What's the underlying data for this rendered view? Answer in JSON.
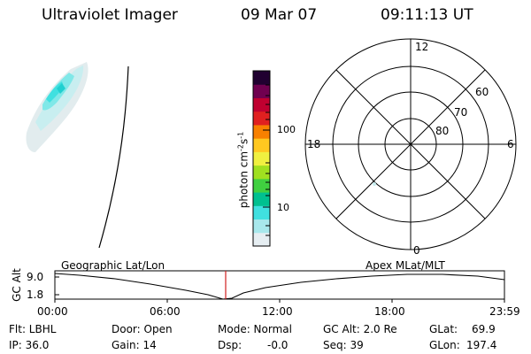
{
  "header": {
    "instrument": "Ultraviolet Imager",
    "date": "09 Mar 07",
    "time": "09:11:13 UT"
  },
  "colorbar": {
    "unit_label": "photon cm-2s-1",
    "unit_parts": [
      "photon cm",
      "-2",
      "s",
      "-1"
    ],
    "tick_labels": [
      "100",
      "10"
    ],
    "colors": [
      "#e6eef2",
      "#a8e8ec",
      "#40e0e0",
      "#00c090",
      "#40d040",
      "#a0e020",
      "#f0f040",
      "#ffc820",
      "#f88000",
      "#e02020",
      "#c00030",
      "#700050",
      "#200030"
    ]
  },
  "polar_plot": {
    "mlt_labels": {
      "top": "12",
      "left": "18",
      "right": "6",
      "bottom": "0"
    },
    "lat_labels": [
      "60",
      "70",
      "80"
    ]
  },
  "timeline": {
    "y_axis_label": "GC Alt",
    "y_ticks": [
      "9.0",
      "1.8"
    ],
    "left_title": "Geographic Lat/Lon",
    "right_title": "Apex MLat/MLT",
    "x_ticks": [
      "00:00",
      "06:00",
      "12:00",
      "18:00",
      "23:59"
    ],
    "marker_color": "#d02020"
  },
  "info": {
    "flt": "Flt: LBHL",
    "ip": "IP: 36.0",
    "door": "Door: Open",
    "gain": "Gain: 14",
    "mode": "Mode: Normal",
    "dsp": "Dsp:",
    "dsp_value": "-0.0",
    "gc_alt": "GC Alt: 2.0 Re",
    "seq": "Seq: 39",
    "glat_label": "GLat:",
    "glat_value": "69.9",
    "glon_label": "GLon:",
    "glon_value": "197.4"
  }
}
